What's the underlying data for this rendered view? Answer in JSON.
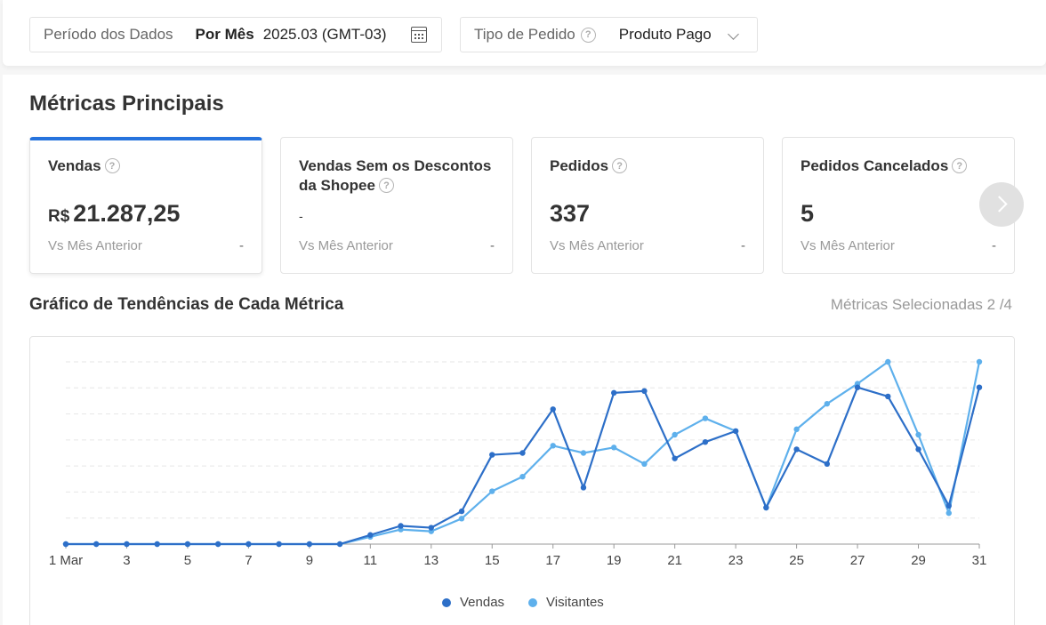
{
  "filters": {
    "period": {
      "label": "Período dos Dados",
      "mode": "Por Mês",
      "value": "2025.03 (GMT-03)"
    },
    "order_type": {
      "label": "Tipo de Pedido",
      "value": "Produto Pago"
    }
  },
  "main_metrics": {
    "title": "Métricas Principais",
    "cards": [
      {
        "title": "Vendas",
        "currency": "R$",
        "value": "21.287,25",
        "compare_label": "Vs Mês Anterior",
        "compare_value": "-"
      },
      {
        "title": "Vendas Sem os Descontos da Shopee",
        "value": "-",
        "compare_label": "Vs Mês Anterior",
        "compare_value": "-"
      },
      {
        "title": "Pedidos",
        "value": "337",
        "compare_label": "Vs Mês Anterior",
        "compare_value": "-"
      },
      {
        "title": "Pedidos Cancelados",
        "value": "5",
        "compare_label": "Vs Mês Anterior",
        "compare_value": "-"
      }
    ]
  },
  "trend": {
    "title": "Gráfico de Tendências de Cada Métrica",
    "selected_text": "Métricas Selecionadas 2 /4"
  },
  "colors": {
    "vendas": "#2d6fc8",
    "visitantes": "#5eb0ec",
    "accent": "#2673dd"
  },
  "chart_data": {
    "type": "line",
    "x": [
      1,
      2,
      3,
      4,
      5,
      6,
      7,
      8,
      9,
      10,
      11,
      12,
      13,
      14,
      15,
      16,
      17,
      18,
      19,
      20,
      21,
      22,
      23,
      24,
      25,
      26,
      27,
      28,
      29,
      30,
      31
    ],
    "x_tick_labels": [
      "1 Mar",
      "3",
      "5",
      "7",
      "9",
      "11",
      "13",
      "15",
      "17",
      "19",
      "21",
      "23",
      "25",
      "27",
      "29",
      "31"
    ],
    "x_tick_positions": [
      1,
      3,
      5,
      7,
      9,
      11,
      13,
      15,
      17,
      19,
      21,
      23,
      25,
      27,
      29,
      31
    ],
    "ylim": [
      0,
      100
    ],
    "grid": true,
    "y_tick_labels_visible": false,
    "legend": [
      "Vendas",
      "Visitantes"
    ],
    "series": [
      {
        "name": "Vendas",
        "values": [
          0,
          0,
          0,
          0,
          0,
          0,
          0,
          0,
          0,
          0,
          5,
          10,
          9,
          18,
          49,
          50,
          74,
          31,
          83,
          84,
          47,
          56,
          62,
          20,
          52,
          44,
          86,
          81,
          52,
          21,
          86
        ]
      },
      {
        "name": "Visitantes",
        "values": [
          0,
          0,
          0,
          0,
          0,
          0,
          0,
          0,
          0,
          0,
          4,
          8,
          7,
          14,
          29,
          37,
          54,
          50,
          53,
          44,
          60,
          69,
          62,
          20,
          63,
          77,
          88,
          100,
          60,
          17,
          100
        ]
      }
    ]
  }
}
